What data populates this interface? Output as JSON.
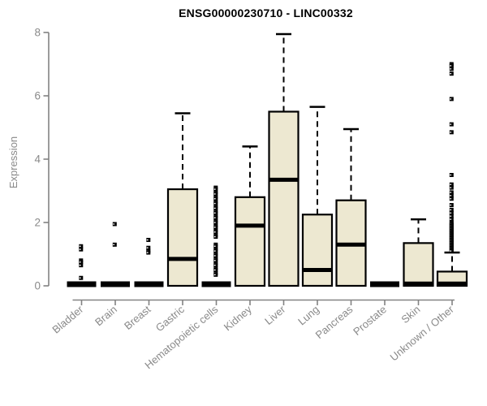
{
  "chart_data": {
    "type": "box",
    "title": "ENSG00000230710 - LINC00332",
    "xlabel": "",
    "ylabel": "Expression",
    "ylim": [
      0,
      8
    ],
    "yticks": [
      0,
      2,
      4,
      6,
      8
    ],
    "grid": false,
    "legend": false,
    "marker": "small-black-square",
    "categories": [
      "Bladder",
      "Brain",
      "Breast",
      "Gastric",
      "Hematopoietic cells",
      "Kidney",
      "Liver",
      "Lung",
      "Pancreas",
      "Prostate",
      "Skin",
      "Unknown / Other"
    ],
    "boxes": [
      {
        "category": "Bladder",
        "q1": 0,
        "median": 0,
        "q3": 0,
        "whisker_low": 0,
        "whisker_high": 0,
        "outliers": [
          1.25,
          1.15,
          0.8,
          0.75,
          0.65,
          0.25
        ]
      },
      {
        "category": "Brain",
        "q1": 0,
        "median": 0,
        "q3": 0,
        "whisker_low": 0,
        "whisker_high": 0,
        "outliers": [
          1.95,
          1.3
        ]
      },
      {
        "category": "Breast",
        "q1": 0,
        "median": 0,
        "q3": 0,
        "whisker_low": 0,
        "whisker_high": 0,
        "outliers": [
          1.45,
          1.2,
          1.1,
          1.05
        ]
      },
      {
        "category": "Gastric",
        "q1": 0,
        "median": 0.85,
        "q3": 3.05,
        "whisker_low": 0,
        "whisker_high": 5.45,
        "outliers": []
      },
      {
        "category": "Hematopoietic cells",
        "q1": 0,
        "median": 0,
        "q3": 0,
        "whisker_low": 0,
        "whisker_high": 0,
        "outliers": [
          3.1,
          3.05,
          2.95,
          2.9,
          2.8,
          2.75,
          2.65,
          2.6,
          2.5,
          2.45,
          2.35,
          2.3,
          2.2,
          2.15,
          2.05,
          2.0,
          1.9,
          1.85,
          1.75,
          1.7,
          1.6,
          1.55,
          1.3,
          1.25,
          1.15,
          1.1,
          1.0,
          0.95,
          0.85,
          0.8,
          0.7,
          0.65,
          0.55,
          0.5,
          0.4,
          0.35
        ]
      },
      {
        "category": "Kidney",
        "q1": 0,
        "median": 1.9,
        "q3": 2.8,
        "whisker_low": 0,
        "whisker_high": 4.4,
        "outliers": []
      },
      {
        "category": "Liver",
        "q1": 0,
        "median": 3.35,
        "q3": 5.5,
        "whisker_low": 0,
        "whisker_high": 7.95,
        "outliers": []
      },
      {
        "category": "Lung",
        "q1": 0,
        "median": 0.5,
        "q3": 2.25,
        "whisker_low": 0,
        "whisker_high": 5.65,
        "outliers": []
      },
      {
        "category": "Pancreas",
        "q1": 0,
        "median": 1.3,
        "q3": 2.7,
        "whisker_low": 0,
        "whisker_high": 4.95,
        "outliers": []
      },
      {
        "category": "Prostate",
        "q1": 0,
        "median": 0,
        "q3": 0,
        "whisker_low": 0,
        "whisker_high": 0,
        "outliers": []
      },
      {
        "category": "Skin",
        "q1": 0,
        "median": 0.02,
        "q3": 1.35,
        "whisker_low": 0,
        "whisker_high": 2.1,
        "outliers": []
      },
      {
        "category": "Unknown / Other",
        "q1": 0,
        "median": 0.02,
        "q3": 0.45,
        "whisker_low": 0,
        "whisker_high": 1.05,
        "outliers": [
          7.0,
          6.95,
          6.85,
          6.7,
          5.9,
          5.1,
          4.85,
          3.5,
          3.2,
          3.1,
          2.95,
          2.85,
          2.75,
          2.55,
          2.4,
          2.3,
          2.2,
          2.1,
          2.0,
          1.95,
          1.9,
          1.85,
          1.8,
          1.75,
          1.7,
          1.65,
          1.6,
          1.55,
          1.5,
          1.45,
          1.4,
          1.35,
          1.3,
          1.25,
          1.2,
          1.15,
          1.1
        ]
      }
    ],
    "colors": {
      "box_fill": "#EDE8D1",
      "box_border": "#000000",
      "median": "#000000",
      "whisker": "#000000",
      "outlier": "#000000",
      "axis": "#828282",
      "tick_label": "#8a8a8a",
      "title": "#000000",
      "background": "#ffffff"
    }
  }
}
